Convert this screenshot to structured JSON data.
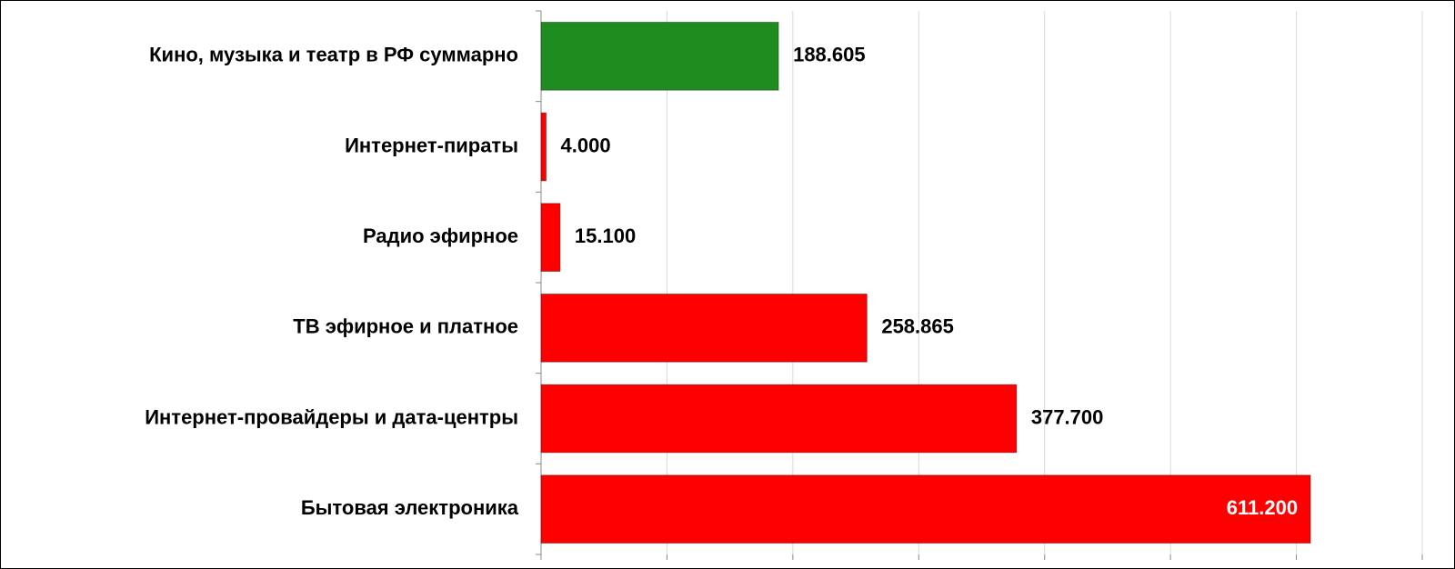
{
  "chart_data": {
    "type": "hbar",
    "categories": [
      "Кино, музыка и театр в РФ суммарно",
      "Интернет-пираты",
      "Радио эфирное",
      "ТВ эфирное и платное",
      "Интернет-провайдеры и дата-центры",
      "Бытовая электроника"
    ],
    "values": [
      188.605,
      4,
      15.1,
      258.865,
      377.7,
      611.2
    ],
    "value_labels": [
      "188.605",
      "4.000",
      "15.100",
      "258.865",
      "377.700",
      "611.200"
    ],
    "colors": [
      "#1f8c1f",
      "#ff0000",
      "#ff0000",
      "#ff0000",
      "#ff0000",
      "#ff0000"
    ],
    "xlim": [
      0,
      700
    ],
    "xticks": [
      0,
      100,
      200,
      300,
      400,
      500,
      600,
      700
    ],
    "grid": true
  }
}
